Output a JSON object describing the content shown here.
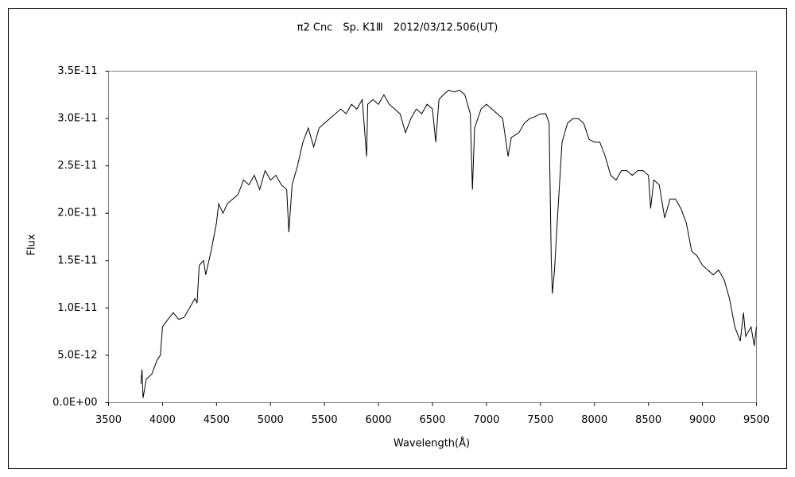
{
  "chart_data": {
    "type": "line",
    "title": "π2 Cnc　Sp. K1Ⅲ　2012/03/12.506(UT)",
    "x_label": "Wavelength(Å)",
    "y_label": "Flux",
    "xlim": [
      3500,
      9500
    ],
    "xticks": [
      3500,
      4000,
      4500,
      5000,
      5500,
      6000,
      6500,
      7000,
      7500,
      8000,
      8500,
      9000,
      9500
    ],
    "ylim": [
      0,
      3.5e-11
    ],
    "yticks": [
      {
        "value": 0,
        "label": "0.0E+00"
      },
      {
        "value": 5e-12,
        "label": "5.0E-12"
      },
      {
        "value": 1e-11,
        "label": "1.0E-11"
      },
      {
        "value": 1.5e-11,
        "label": "1.5E-11"
      },
      {
        "value": 2e-11,
        "label": "2.0E-11"
      },
      {
        "value": 2.5e-11,
        "label": "2.5E-11"
      },
      {
        "value": 3e-11,
        "label": "3.0E-11"
      },
      {
        "value": 3.5e-11,
        "label": "3.5E-11"
      }
    ],
    "grid": false,
    "color": "#000000",
    "x": [
      3800,
      3810,
      3820,
      3850,
      3900,
      3950,
      3980,
      4000,
      4050,
      4100,
      4150,
      4200,
      4250,
      4300,
      4320,
      4340,
      4380,
      4400,
      4450,
      4500,
      4520,
      4560,
      4600,
      4650,
      4700,
      4750,
      4800,
      4850,
      4900,
      4950,
      5000,
      5050,
      5100,
      5150,
      5170,
      5200,
      5250,
      5300,
      5350,
      5400,
      5450,
      5500,
      5550,
      5600,
      5650,
      5700,
      5750,
      5800,
      5850,
      5890,
      5900,
      5950,
      6000,
      6050,
      6100,
      6150,
      6200,
      6250,
      6300,
      6350,
      6400,
      6450,
      6500,
      6530,
      6560,
      6600,
      6650,
      6700,
      6750,
      6800,
      6850,
      6870,
      6890,
      6950,
      7000,
      7050,
      7100,
      7150,
      7200,
      7230,
      7300,
      7350,
      7400,
      7450,
      7500,
      7550,
      7580,
      7600,
      7610,
      7630,
      7660,
      7700,
      7750,
      7800,
      7850,
      7900,
      7950,
      8000,
      8050,
      8100,
      8150,
      8200,
      8250,
      8300,
      8350,
      8400,
      8450,
      8500,
      8520,
      8550,
      8600,
      8650,
      8700,
      8750,
      8800,
      8850,
      8900,
      8950,
      9000,
      9050,
      9100,
      9150,
      9200,
      9250,
      9300,
      9350,
      9380,
      9400,
      9450,
      9480,
      9500
    ],
    "values": [
      2e-12,
      3.5e-12,
      5e-13,
      2.5e-12,
      3e-12,
      4.5e-12,
      5e-12,
      8e-12,
      8.8e-12,
      9.5e-12,
      8.8e-12,
      9e-12,
      1e-11,
      1.1e-11,
      1.05e-11,
      1.45e-11,
      1.5e-11,
      1.35e-11,
      1.6e-11,
      1.9e-11,
      2.1e-11,
      2e-11,
      2.1e-11,
      2.15e-11,
      2.2e-11,
      2.35e-11,
      2.3e-11,
      2.4e-11,
      2.25e-11,
      2.45e-11,
      2.35e-11,
      2.4e-11,
      2.3e-11,
      2.25e-11,
      1.8e-11,
      2.3e-11,
      2.5e-11,
      2.75e-11,
      2.9e-11,
      2.7e-11,
      2.9e-11,
      2.95e-11,
      3e-11,
      3.05e-11,
      3.1e-11,
      3.05e-11,
      3.15e-11,
      3.1e-11,
      3.2e-11,
      2.6e-11,
      3.15e-11,
      3.2e-11,
      3.15e-11,
      3.25e-11,
      3.15e-11,
      3.1e-11,
      3.05e-11,
      2.85e-11,
      3e-11,
      3.1e-11,
      3.05e-11,
      3.15e-11,
      3.1e-11,
      2.75e-11,
      3.2e-11,
      3.25e-11,
      3.3e-11,
      3.28e-11,
      3.3e-11,
      3.25e-11,
      3.05e-11,
      2.25e-11,
      2.9e-11,
      3.1e-11,
      3.15e-11,
      3.1e-11,
      3.05e-11,
      3e-11,
      2.6e-11,
      2.8e-11,
      2.85e-11,
      2.95e-11,
      3e-11,
      3.02e-11,
      3.05e-11,
      3.05e-11,
      2.95e-11,
      1.5e-11,
      1.15e-11,
      1.4e-11,
      2e-11,
      2.75e-11,
      2.95e-11,
      3e-11,
      3e-11,
      2.95e-11,
      2.78e-11,
      2.75e-11,
      2.75e-11,
      2.6e-11,
      2.4e-11,
      2.35e-11,
      2.45e-11,
      2.45e-11,
      2.4e-11,
      2.45e-11,
      2.45e-11,
      2.4e-11,
      2.05e-11,
      2.35e-11,
      2.3e-11,
      1.95e-11,
      2.15e-11,
      2.15e-11,
      2.05e-11,
      1.9e-11,
      1.6e-11,
      1.55e-11,
      1.45e-11,
      1.4e-11,
      1.35e-11,
      1.4e-11,
      1.3e-11,
      1.1e-11,
      8e-12,
      6.5e-12,
      9.5e-12,
      7e-12,
      8e-12,
      6e-12,
      8e-12
    ]
  }
}
